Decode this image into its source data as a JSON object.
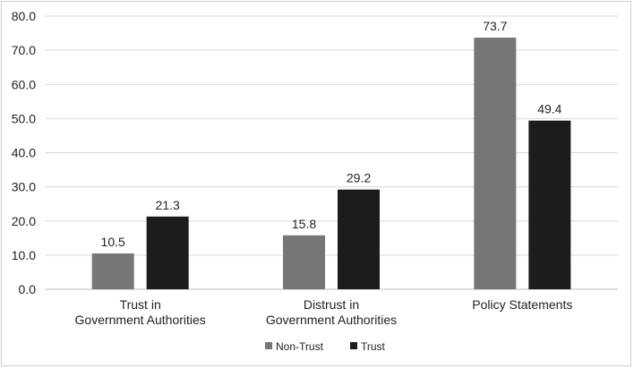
{
  "chart_data": {
    "type": "bar",
    "categories": [
      [
        "Trust in",
        "Government Authorities"
      ],
      [
        "Distrust in",
        "Government Authorities"
      ],
      [
        "Policy Statements"
      ]
    ],
    "series": [
      {
        "name": "Non-Trust",
        "values": [
          10.5,
          15.8,
          73.7
        ],
        "color": "#767676"
      },
      {
        "name": "Trust",
        "values": [
          21.3,
          29.2,
          49.4
        ],
        "color": "#1c1c1c"
      }
    ],
    "y_ticks": [
      "0.0",
      "10.0",
      "20.0",
      "30.0",
      "40.0",
      "50.0",
      "60.0",
      "70.0",
      "80.0"
    ],
    "ylim": [
      0,
      80
    ],
    "grid": true,
    "legend_position": "bottom",
    "data_labels": true
  }
}
